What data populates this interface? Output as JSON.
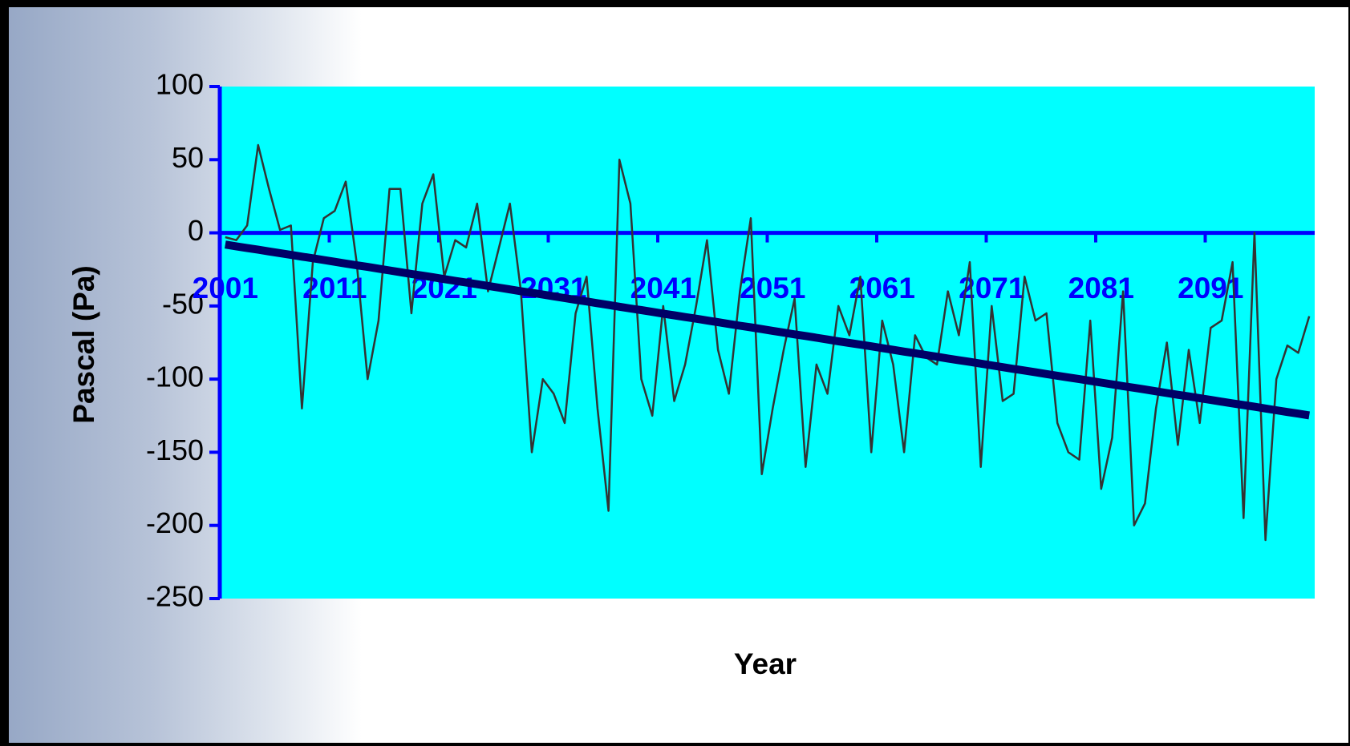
{
  "chart_data": {
    "type": "line",
    "x_label": "Year",
    "y_label": "Pascal (Pa)",
    "categories": [
      "2001",
      null,
      null,
      null,
      null,
      null,
      null,
      null,
      null,
      null,
      "2011",
      null,
      null,
      null,
      null,
      null,
      null,
      null,
      null,
      null,
      "2021",
      null,
      null,
      null,
      null,
      null,
      null,
      null,
      null,
      null,
      "2031",
      null,
      null,
      null,
      null,
      null,
      null,
      null,
      null,
      null,
      "2041",
      null,
      null,
      null,
      null,
      null,
      null,
      null,
      null,
      null,
      "2051",
      null,
      null,
      null,
      null,
      null,
      null,
      null,
      null,
      null,
      "2061",
      null,
      null,
      null,
      null,
      null,
      null,
      null,
      null,
      null,
      "2071",
      null,
      null,
      null,
      null,
      null,
      null,
      null,
      null,
      null,
      "2081",
      null,
      null,
      null,
      null,
      null,
      null,
      null,
      null,
      null,
      "2091",
      null,
      null,
      null,
      null,
      null,
      null,
      null,
      null,
      null
    ],
    "series": [
      {
        "color": "#333333",
        "values": [
          -3,
          -5,
          5,
          60,
          30,
          2,
          5,
          -120,
          -20,
          10,
          15,
          35,
          -20,
          -100,
          -60,
          30,
          30,
          -55,
          20,
          40,
          -30,
          -5,
          -10,
          20,
          -40,
          -10,
          20,
          -40,
          -150,
          -100,
          -110,
          -130,
          -55,
          -30,
          -120,
          -190,
          50,
          20,
          -100,
          -125,
          -50,
          -115,
          -90,
          -50,
          -5,
          -80,
          -110,
          -40,
          10,
          -165,
          -120,
          -80,
          -45,
          -160,
          -90,
          -110,
          -50,
          -70,
          -30,
          -150,
          -60,
          -90,
          -150,
          -70,
          -85,
          -90,
          -40,
          -70,
          -20,
          -160,
          -50,
          -115,
          -110,
          -30,
          -60,
          -55,
          -130,
          -150,
          -155,
          -60,
          -175,
          -140,
          -40,
          -200,
          -185,
          -120,
          -75,
          -145,
          -80,
          -130,
          -65,
          -60,
          -20,
          -195,
          0,
          -210,
          -100,
          -77,
          -82,
          -57
        ]
      },
      {
        "color": "#000066",
        "values": [
          -8,
          -9.2,
          -10.4,
          -11.5,
          -12.7,
          -13.9,
          -15.1,
          -16.3,
          -17.4,
          -18.6,
          -19.8,
          -21,
          -22.2,
          -23.3,
          -24.5,
          -25.7,
          -26.9,
          -28.1,
          -29.2,
          -30.4,
          -31.6,
          -32.8,
          -34,
          -35.1,
          -36.3,
          -37.5,
          -38.7,
          -39.9,
          -41,
          -42.2,
          -43.4,
          -44.6,
          -45.8,
          -46.9,
          -48.1,
          -49.3,
          -50.5,
          -51.7,
          -52.8,
          -54,
          -55.2,
          -56.4,
          -57.6,
          -58.7,
          -59.9,
          -61.1,
          -62.3,
          -63.5,
          -64.6,
          -65.8,
          -67,
          -68.2,
          -69.4,
          -70.5,
          -71.7,
          -72.9,
          -74.1,
          -75.3,
          -76.4,
          -77.6,
          -78.8,
          -80,
          -81.2,
          -82.3,
          -83.5,
          -84.7,
          -85.9,
          -87.1,
          -88.2,
          -89.4,
          -90.6,
          -91.8,
          -93,
          -94.1,
          -95.3,
          -96.5,
          -97.7,
          -98.9,
          -100,
          -101.2,
          -102.4,
          -103.6,
          -104.8,
          -105.9,
          -107.1,
          -108.3,
          -109.5,
          -110.7,
          -111.8,
          -113,
          -114.2,
          -115.4,
          -116.6,
          -117.7,
          -118.9,
          -120.1,
          -121.3,
          -122.5,
          -123.6,
          -124.8
        ]
      }
    ],
    "ylim": [
      -250,
      100
    ],
    "yticks": [
      100,
      50,
      0,
      -50,
      -100,
      -150,
      -200,
      -250
    ],
    "plot_background": "#00ffff",
    "axis_color": "#0000ff"
  }
}
